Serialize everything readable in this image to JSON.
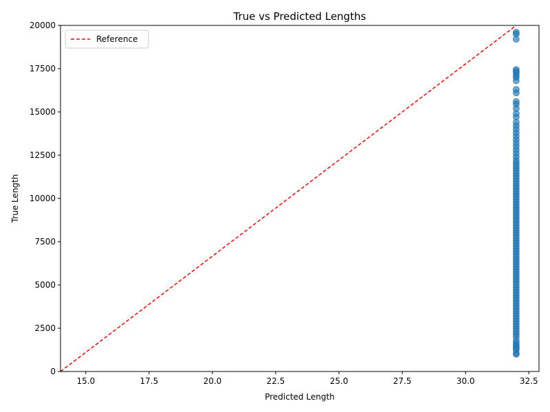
{
  "chart_data": {
    "type": "scatter",
    "title": "True vs Predicted Lengths",
    "xlabel": "Predicted Length",
    "ylabel": "True Length",
    "xlim": [
      14.0,
      32.9
    ],
    "ylim": [
      0,
      20000
    ],
    "xticks": [
      "15.0",
      "17.5",
      "20.0",
      "22.5",
      "25.0",
      "27.5",
      "30.0",
      "32.5"
    ],
    "xtick_values": [
      15.0,
      17.5,
      20.0,
      22.5,
      25.0,
      27.5,
      30.0,
      32.5
    ],
    "yticks": [
      "0",
      "2500",
      "5000",
      "7500",
      "10000",
      "12500",
      "15000",
      "17500",
      "20000"
    ],
    "ytick_values": [
      0,
      2500,
      5000,
      7500,
      10000,
      12500,
      15000,
      17500,
      20000
    ],
    "grid": false,
    "legend": {
      "placement": "top-left",
      "entries": [
        {
          "label": "Reference",
          "style": "dashed",
          "color": "#ff0000"
        }
      ]
    },
    "colors": {
      "points": "#1f77b4",
      "reference": "#ff0000"
    },
    "reference_line": {
      "name": "Reference",
      "x": [
        14.0,
        32.0
      ],
      "y": [
        0,
        20000
      ]
    },
    "series": [
      {
        "x_constant": 32.0,
        "y": [
          1000,
          1050,
          1250,
          1350,
          1450,
          1550,
          1650,
          1800,
          2000,
          2150,
          2300,
          2450,
          2600,
          2750,
          2900,
          3050,
          3200,
          3350,
          3500,
          3650,
          3800,
          3950,
          4100,
          4250,
          4400,
          4550,
          4700,
          4850,
          5000,
          5150,
          5300,
          5450,
          5600,
          5750,
          5900,
          6050,
          6200,
          6350,
          6500,
          6650,
          6800,
          6950,
          7100,
          7250,
          7400,
          7550,
          7700,
          7850,
          8000,
          8150,
          8300,
          8450,
          8600,
          8750,
          8900,
          9050,
          9200,
          9350,
          9500,
          9650,
          9800,
          9950,
          10100,
          10250,
          10400,
          10550,
          10700,
          10850,
          11000,
          11150,
          11300,
          11450,
          11600,
          11750,
          11900,
          12050,
          12200,
          12400,
          12600,
          12800,
          13000,
          13200,
          13400,
          13600,
          13800,
          14000,
          14200,
          14400,
          14700,
          14900,
          15200,
          15450,
          15600,
          16100,
          16300,
          16800,
          17000,
          17100,
          17250,
          17350,
          17450,
          19200,
          19500,
          19600
        ]
      }
    ]
  }
}
